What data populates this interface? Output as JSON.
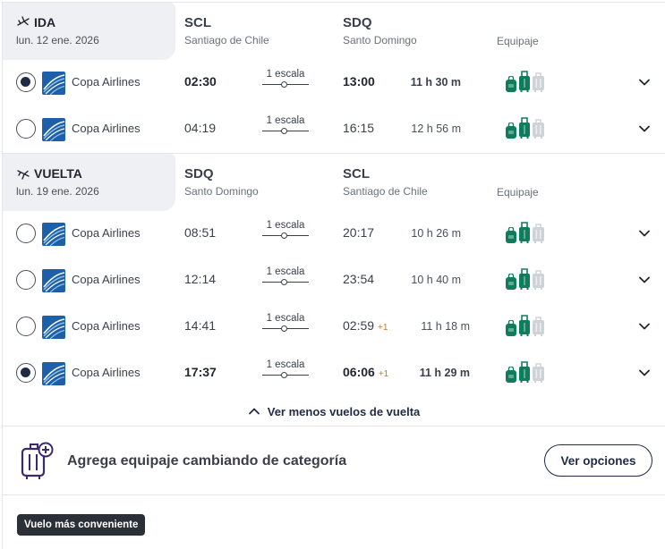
{
  "outbound": {
    "label": "IDA",
    "date": "lun. 12 ene. 2026",
    "origin_code": "SCL",
    "origin_city": "Santiago de Chile",
    "dest_code": "SDQ",
    "dest_city": "Santo Domingo",
    "baggage_label": "Equipaje",
    "flights": [
      {
        "selected": true,
        "airline": "Copa Airlines",
        "dep": "02:30",
        "stops": "1 escala",
        "arr": "13:00",
        "next_day": "",
        "duration": "11 h 30 m"
      },
      {
        "selected": false,
        "airline": "Copa Airlines",
        "dep": "04:19",
        "stops": "1 escala",
        "arr": "16:15",
        "next_day": "",
        "duration": "12 h 56 m"
      }
    ]
  },
  "return": {
    "label": "VUELTA",
    "date": "lun. 19 ene. 2026",
    "origin_code": "SDQ",
    "origin_city": "Santo Domingo",
    "dest_code": "SCL",
    "dest_city": "Santiago de Chile",
    "baggage_label": "Equipaje",
    "flights": [
      {
        "selected": false,
        "airline": "Copa Airlines",
        "dep": "08:51",
        "stops": "1 escala",
        "arr": "20:17",
        "next_day": "",
        "duration": "10 h 26 m"
      },
      {
        "selected": false,
        "airline": "Copa Airlines",
        "dep": "12:14",
        "stops": "1 escala",
        "arr": "23:54",
        "next_day": "",
        "duration": "10 h 40 m"
      },
      {
        "selected": false,
        "airline": "Copa Airlines",
        "dep": "14:41",
        "stops": "1 escala",
        "arr": "02:59",
        "next_day": "+1",
        "duration": "11 h 18 m"
      },
      {
        "selected": true,
        "airline": "Copa Airlines",
        "dep": "17:37",
        "stops": "1 escala",
        "arr": "06:06",
        "next_day": "+1",
        "duration": "11 h 29 m"
      }
    ]
  },
  "less_link": "Ver menos vuelos de vuelta",
  "upsell": {
    "text": "Agrega equipaje cambiando de categoría",
    "button": "Ver opciones"
  },
  "badge": "Vuelo más conveniente",
  "colors": {
    "bag_included": "#0f7d5c",
    "bag_excluded": "#cfd3d9",
    "accent_navy": "#1f2a44",
    "next_day": "#c77a1e"
  },
  "icons": {
    "outbound": "plane-takeoff-icon",
    "return": "plane-landing-icon",
    "baggage": [
      "backpack-icon",
      "carry-on-icon",
      "checked-bag-icon"
    ],
    "expand": "chevron-down-icon",
    "collapse": "chevron-up-icon",
    "upsell": "luggage-add-icon"
  }
}
